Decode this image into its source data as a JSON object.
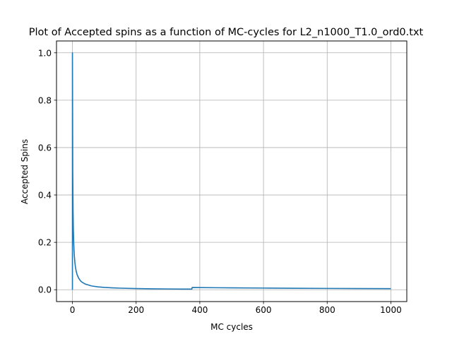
{
  "chart_data": {
    "type": "line",
    "title": "Plot of Accepted spins as a function of MC-cycles for L2_n1000_T1.0_ord0.txt",
    "xlabel": "MC cycles",
    "ylabel": "Accepted Spins",
    "xlim": [
      -50,
      1050
    ],
    "ylim": [
      -0.05,
      1.05
    ],
    "xticks": [
      0,
      200,
      400,
      600,
      800,
      1000
    ],
    "yticks": [
      0.0,
      0.2,
      0.4,
      0.6,
      0.8,
      1.0
    ],
    "xtick_labels": [
      "0",
      "200",
      "400",
      "600",
      "800",
      "1000"
    ],
    "ytick_labels": [
      "0.0",
      "0.2",
      "0.4",
      "0.6",
      "0.8",
      "1.0"
    ],
    "grid": true,
    "line_color": "#1f77b4",
    "series": [
      {
        "x": [
          0,
          0,
          1,
          2,
          3,
          4,
          5,
          6,
          8,
          10,
          12,
          15,
          20,
          25,
          30,
          40,
          50,
          60,
          80,
          100,
          125,
          150,
          200,
          250,
          300,
          350,
          375,
          376,
          400,
          450,
          500,
          600,
          700,
          800,
          900,
          1000
        ],
        "y": [
          0.0,
          1.0,
          0.5,
          0.333,
          0.25,
          0.2,
          0.167,
          0.143,
          0.111,
          0.091,
          0.077,
          0.0625,
          0.048,
          0.038,
          0.032,
          0.024,
          0.02,
          0.016,
          0.012,
          0.0099,
          0.008,
          0.0066,
          0.005,
          0.004,
          0.0033,
          0.0028,
          0.0027,
          0.0095,
          0.009,
          0.0085,
          0.008,
          0.007,
          0.006,
          0.0055,
          0.005,
          0.0045
        ]
      }
    ]
  }
}
